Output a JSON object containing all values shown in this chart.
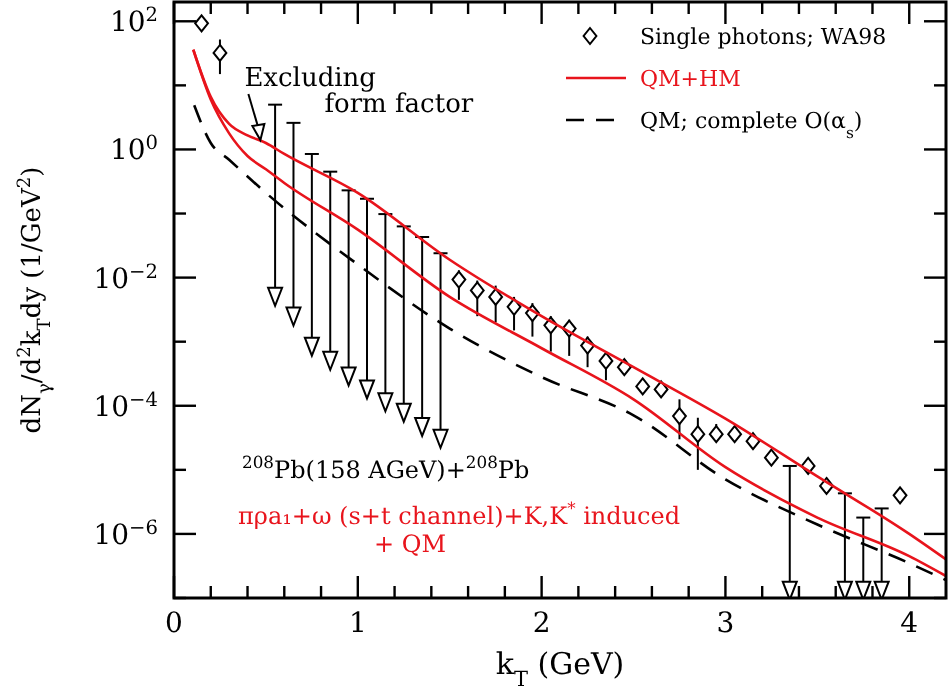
{
  "chart_data": {
    "type": "line",
    "xlabel": "k$_{T}$ (GeV)",
    "ylabel": "dN$_{γ}$/d$^{2}$k$_{T}$dy (1/GeV$^{2}$)",
    "log": "y",
    "xlim": [
      0,
      4.2
    ],
    "ylim": [
      1e-07,
      200
    ],
    "xticks": [
      0,
      {
        "value": 0.2,
        "label": null
      },
      {
        "value": 0.4,
        "label": null
      },
      {
        "value": 0.6,
        "label": null
      },
      {
        "value": 0.8,
        "label": null
      },
      1,
      {
        "value": 1.2,
        "label": null
      },
      {
        "value": 1.4,
        "label": null
      },
      {
        "value": 1.6,
        "label": null
      },
      {
        "value": 1.8,
        "label": null
      },
      2,
      {
        "value": 2.2,
        "label": null
      },
      {
        "value": 2.4,
        "label": null
      },
      {
        "value": 2.6,
        "label": null
      },
      {
        "value": 2.8,
        "label": null
      },
      3,
      {
        "value": 3.2,
        "label": null
      },
      {
        "value": 3.4,
        "label": null
      },
      {
        "value": 3.6,
        "label": null
      },
      {
        "value": 3.8,
        "label": null
      },
      4
    ],
    "yticks": [
      {
        "value": 1e-07,
        "label": null
      },
      {
        "value": 1e-06,
        "label": "10$^{−6}$"
      },
      {
        "value": 1e-05,
        "label": null
      },
      {
        "value": 0.0001,
        "label": "10$^{−4}$"
      },
      {
        "value": 0.001,
        "label": null
      },
      {
        "value": 0.01,
        "label": "10$^{−2}$"
      },
      {
        "value": 0.1,
        "label": null
      },
      {
        "value": 1,
        "label": "10$^{0}$"
      },
      {
        "value": 10,
        "label": null
      },
      {
        "value": 100,
        "label": "10$^{2}$"
      }
    ],
    "grid": false,
    "legend": "top right",
    "series": [
      {
        "name": "Single photons; WA98",
        "type": "scatter",
        "marker": "diamond",
        "color": "#000000",
        "x": [
          0.15,
          0.25,
          1.55,
          1.65,
          1.75,
          1.85,
          1.95,
          2.05,
          2.15,
          2.25,
          2.35,
          2.45,
          2.55,
          2.65,
          2.75,
          2.85,
          2.95,
          3.05,
          3.15,
          3.25,
          3.45,
          3.55,
          3.95
        ],
        "values": [
          93,
          32,
          0.0093,
          0.0063,
          0.005,
          0.0035,
          0.0028,
          0.0018,
          0.0016,
          0.00087,
          0.0005,
          0.0004,
          0.0002,
          0.00018,
          6.9e-05,
          3.6e-05,
          3.6e-05,
          3.6e-05,
          2.8e-05,
          1.55e-05,
          1.15e-05,
          5.6e-06,
          4e-06
        ],
        "errors": [
          null,
          [
            15,
            52
          ],
          [
            0.0045,
            0.013
          ],
          [
            0.0025,
            0.009
          ],
          [
            0.002,
            0.0075
          ],
          [
            0.0015,
            0.005
          ],
          [
            0.0012,
            0.004
          ],
          [
            0.0007,
            0.0025
          ],
          [
            0.0006,
            0.0022
          ],
          [
            0.0004,
            0.0012
          ],
          [
            0.00025,
            0.0007
          ],
          null,
          null,
          null,
          [
            3e-05,
            0.000126
          ],
          [
            1e-05,
            6.5e-05
          ],
          [
            3e-05,
            5.2e-05
          ],
          null,
          null,
          null,
          null,
          null,
          null
        ]
      },
      {
        "type": "scatter",
        "marker": "triangle",
        "color": "#000000",
        "x": [
          0.55,
          0.65,
          0.75,
          0.85,
          0.95,
          1.05,
          1.15,
          1.25,
          1.35,
          1.45,
          3.35,
          3.65,
          3.75,
          3.85
        ],
        "values": [
          0.0056,
          0.00275,
          0.00093,
          0.00056,
          0.00032,
          0.0002,
          0.000126,
          8.7e-05,
          5.2e-05,
          3.4e-05,
          1.45e-07,
          1.45e-07,
          1.45e-07,
          1.45e-07
        ],
        "errors": [
          [
            0.0056,
            5
          ],
          [
            0.00275,
            2.6
          ],
          [
            0.00093,
            0.85
          ],
          [
            0.00056,
            0.45
          ],
          [
            0.00032,
            0.23
          ],
          [
            0.0002,
            0.17
          ],
          [
            0.000126,
            0.098
          ],
          [
            8.7e-05,
            0.063
          ],
          [
            5.2e-05,
            0.043
          ],
          [
            3.4e-05,
            0.024
          ],
          [
            1.45e-07,
            1.15e-05
          ],
          [
            1.45e-07,
            4.3e-06
          ],
          [
            1.45e-07,
            1.8e-06
          ],
          [
            1.45e-07,
            2.5e-06
          ]
        ]
      },
      {
        "name": "QM+HM",
        "color": "#e8141c",
        "line_style": "solid",
        "x": [
          0.105,
          0.2,
          0.3,
          0.4,
          0.5,
          0.6,
          1.0,
          1.5,
          2.0,
          2.5,
          3.0,
          3.5,
          4.0,
          4.2
        ],
        "values": [
          36,
          6.0,
          1.78,
          0.79,
          0.49,
          0.3,
          0.056,
          0.005,
          0.00079,
          0.000126,
          1.1e-05,
          1.8e-06,
          4.5e-07,
          2.2e-07
        ]
      },
      {
        "color": "#e8141c",
        "line_style": "solid",
        "x": [
          0.105,
          0.2,
          0.3,
          0.4,
          0.5,
          0.6,
          1.0,
          1.5,
          2.0,
          2.5,
          3.0,
          3.5,
          4.0,
          4.2
        ],
        "values": [
          36,
          6.6,
          2.5,
          1.66,
          1.26,
          0.85,
          0.21,
          0.019,
          0.0025,
          0.0004,
          6.3e-05,
          7.9e-06,
          1e-06,
          4e-07
        ]
      },
      {
        "name": "QM; complete O(α$_{s}$)",
        "color": "#000000",
        "line_style": "dashed",
        "x": [
          0.11,
          0.2,
          0.3,
          0.5,
          1.0,
          1.5,
          2.0,
          2.5,
          3.0,
          3.5,
          4.0,
          4.2
        ],
        "values": [
          4.9,
          1.26,
          0.69,
          0.21,
          0.016,
          0.0016,
          0.00028,
          7.1e-05,
          7.1e-06,
          1.4e-06,
          3.5e-07,
          1.9e-07
        ]
      }
    ],
    "annotations": [
      {
        "text": "Excluding form factor",
        "x": 0.47,
        "y": 1.4
      },
      "$^{208}$Pb(158 AGeV)+$^{208}$Pb",
      "πρa₁+ω (s+t channel)+K,K$^{*}$ induced",
      "+  QM"
    ]
  }
}
